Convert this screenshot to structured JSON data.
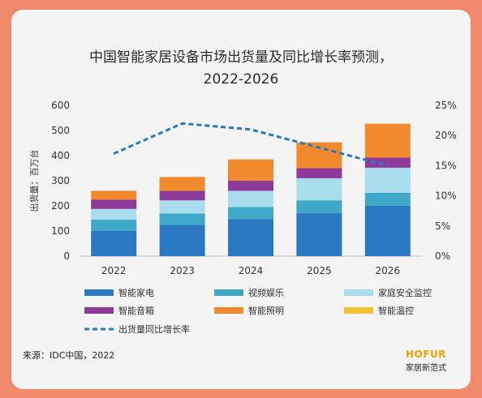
{
  "title_line1": "中国智能家居设备市场出货量及同比增长率预测，",
  "title_line2": "2022-2026",
  "source": "来源：IDC中国，2022",
  "brand": {
    "logo": "HOFUR",
    "subtitle": "家居新范式"
  },
  "chart_data": {
    "type": "bar",
    "stacked": true,
    "categories": [
      "2022",
      "2023",
      "2024",
      "2025",
      "2026"
    ],
    "ylabel": "出货量：百万台",
    "ylim": [
      0,
      600
    ],
    "yticks": [
      0,
      100,
      200,
      300,
      400,
      500,
      600
    ],
    "y2lim": [
      0,
      25
    ],
    "y2ticks": [
      "0%",
      "5%",
      "10%",
      "15%",
      "20%",
      "25%"
    ],
    "series": [
      {
        "name": "智能家电",
        "color": "#2b78c2",
        "values": [
          100,
          125,
          147,
          172,
          200
        ]
      },
      {
        "name": "视频娱乐",
        "color": "#3fa8c9",
        "values": [
          45,
          45,
          48,
          50,
          52
        ]
      },
      {
        "name": "家庭安全监控",
        "color": "#a9dcec",
        "values": [
          43,
          52,
          65,
          88,
          100
        ]
      },
      {
        "name": "智能音箱",
        "color": "#8e3a9a",
        "values": [
          37,
          38,
          40,
          40,
          40
        ]
      },
      {
        "name": "智能照明",
        "color": "#f08a2c",
        "values": [
          35,
          55,
          85,
          103,
          135
        ]
      },
      {
        "name": "智能温控",
        "color": "#f2c230",
        "values": [
          0,
          0,
          0,
          0,
          0
        ]
      }
    ],
    "line_series": {
      "name": "出货量同比增长率",
      "color": "#2b78c2",
      "values": [
        17,
        22,
        21,
        18,
        15
      ]
    },
    "grid": false,
    "legend_position": "bottom"
  }
}
